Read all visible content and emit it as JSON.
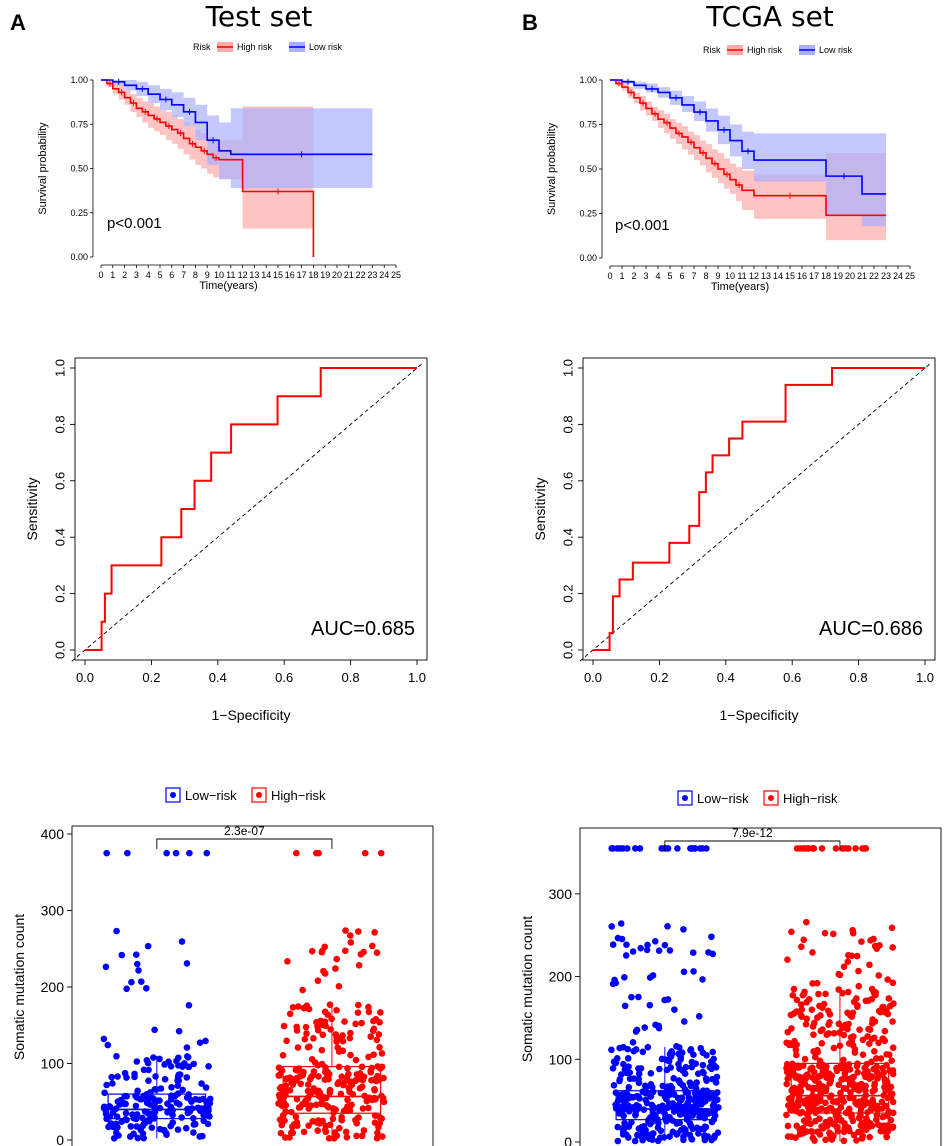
{
  "panels": [
    {
      "letter": "A",
      "title": "Test set"
    },
    {
      "letter": "B",
      "title": "TCGA set"
    }
  ],
  "colors": {
    "high": "#ff0000",
    "low": "#0000ff",
    "high_band": "#ffaaaa",
    "low_band": "#aab0ff",
    "overlap": "#a060b0"
  },
  "chart_data": [
    {
      "type": "line",
      "panel": "A",
      "title": "Test set",
      "xlabel": "Time(years)",
      "ylabel": "Survival probability",
      "xlim": [
        0,
        25
      ],
      "ylim": [
        0,
        1
      ],
      "x_ticks": [
        "0",
        "1",
        "2",
        "3",
        "4",
        "5",
        "6",
        "7",
        "8",
        "9",
        "10",
        "11",
        "12",
        "13",
        "14",
        "15",
        "16",
        "17",
        "18",
        "19",
        "20",
        "21",
        "22",
        "23",
        "24",
        "25"
      ],
      "y_ticks": [
        "0.00",
        "0.25",
        "0.50",
        "0.75",
        "1.00"
      ],
      "legend": {
        "title": "Risk",
        "entries": [
          "High risk",
          "Low risk"
        ],
        "placement": "top"
      },
      "annotation": "p<0.001",
      "series": [
        {
          "name": "High risk",
          "x": [
            0,
            0.5,
            1,
            1.5,
            2,
            2.5,
            3,
            3.5,
            4,
            4.5,
            5,
            5.5,
            6,
            6.5,
            7,
            7.5,
            8,
            8.5,
            9,
            9.5,
            10,
            12,
            18,
            18
          ],
          "y": [
            1,
            0.98,
            0.95,
            0.93,
            0.9,
            0.87,
            0.84,
            0.82,
            0.8,
            0.78,
            0.76,
            0.74,
            0.72,
            0.7,
            0.67,
            0.64,
            0.62,
            0.6,
            0.58,
            0.56,
            0.55,
            0.37,
            0.37,
            0
          ],
          "upper": [
            1,
            1,
            0.98,
            0.97,
            0.94,
            0.92,
            0.9,
            0.88,
            0.87,
            0.85,
            0.83,
            0.82,
            0.8,
            0.78,
            0.76,
            0.74,
            0.72,
            0.7,
            0.68,
            0.66,
            0.66,
            0.85,
            0.85,
            0.85
          ],
          "lower": [
            1,
            0.96,
            0.92,
            0.89,
            0.86,
            0.82,
            0.79,
            0.76,
            0.73,
            0.71,
            0.69,
            0.66,
            0.64,
            0.61,
            0.58,
            0.55,
            0.52,
            0.5,
            0.47,
            0.45,
            0.44,
            0.16,
            0.16,
            0
          ]
        },
        {
          "name": "Low risk",
          "x": [
            0,
            1,
            2,
            3,
            4,
            5,
            6,
            7,
            8,
            9,
            10,
            11,
            23
          ],
          "y": [
            1,
            0.99,
            0.97,
            0.95,
            0.92,
            0.89,
            0.86,
            0.82,
            0.76,
            0.66,
            0.6,
            0.58,
            0.58
          ],
          "upper": [
            1,
            1,
            1,
            0.99,
            0.97,
            0.95,
            0.93,
            0.9,
            0.86,
            0.8,
            0.76,
            0.84,
            0.84
          ],
          "lower": [
            1,
            0.97,
            0.94,
            0.91,
            0.87,
            0.83,
            0.79,
            0.74,
            0.66,
            0.52,
            0.44,
            0.39,
            0.39
          ]
        }
      ]
    },
    {
      "type": "line",
      "panel": "B",
      "title": "TCGA set",
      "xlabel": "Time(years)",
      "ylabel": "Survival probability",
      "xlim": [
        0,
        25
      ],
      "ylim": [
        0,
        1
      ],
      "x_ticks": [
        "0",
        "1",
        "2",
        "3",
        "4",
        "5",
        "6",
        "7",
        "8",
        "9",
        "10",
        "11",
        "12",
        "13",
        "14",
        "15",
        "16",
        "17",
        "18",
        "19",
        "20",
        "21",
        "22",
        "23",
        "24",
        "25"
      ],
      "y_ticks": [
        "0.00",
        "0.25",
        "0.50",
        "0.75",
        "1.00"
      ],
      "legend": {
        "title": "Risk",
        "entries": [
          "High risk",
          "Low risk"
        ],
        "placement": "top"
      },
      "annotation": "p<0.001",
      "series": [
        {
          "name": "High risk",
          "x": [
            0,
            0.5,
            1,
            1.5,
            2,
            2.5,
            3,
            3.5,
            4,
            4.5,
            5,
            5.5,
            6,
            6.5,
            7,
            7.5,
            8,
            8.5,
            9,
            9.5,
            10,
            10.5,
            11,
            12,
            18,
            23
          ],
          "y": [
            1,
            0.98,
            0.96,
            0.93,
            0.9,
            0.87,
            0.84,
            0.81,
            0.78,
            0.76,
            0.73,
            0.7,
            0.68,
            0.65,
            0.62,
            0.59,
            0.56,
            0.53,
            0.5,
            0.47,
            0.44,
            0.41,
            0.38,
            0.35,
            0.24,
            0.24
          ],
          "upper": [
            1,
            1,
            0.98,
            0.96,
            0.93,
            0.91,
            0.88,
            0.85,
            0.83,
            0.81,
            0.78,
            0.76,
            0.74,
            0.71,
            0.69,
            0.66,
            0.64,
            0.61,
            0.59,
            0.56,
            0.53,
            0.51,
            0.49,
            0.47,
            0.59,
            0.59
          ],
          "lower": [
            1,
            0.97,
            0.94,
            0.9,
            0.87,
            0.83,
            0.8,
            0.77,
            0.73,
            0.7,
            0.67,
            0.64,
            0.61,
            0.58,
            0.55,
            0.52,
            0.48,
            0.45,
            0.42,
            0.39,
            0.36,
            0.32,
            0.27,
            0.22,
            0.1,
            0.1
          ]
        },
        {
          "name": "Low risk",
          "x": [
            0,
            1,
            2,
            3,
            4,
            5,
            6,
            7,
            8,
            9,
            10,
            11,
            12,
            18,
            21,
            23
          ],
          "y": [
            1,
            0.99,
            0.97,
            0.95,
            0.93,
            0.9,
            0.86,
            0.82,
            0.77,
            0.72,
            0.66,
            0.6,
            0.55,
            0.46,
            0.36,
            0.36
          ],
          "upper": [
            1,
            1,
            0.99,
            0.98,
            0.96,
            0.94,
            0.91,
            0.88,
            0.84,
            0.8,
            0.75,
            0.71,
            0.7,
            0.7,
            0.7,
            0.7
          ],
          "lower": [
            1,
            0.98,
            0.95,
            0.93,
            0.9,
            0.86,
            0.82,
            0.77,
            0.71,
            0.64,
            0.57,
            0.5,
            0.43,
            0.24,
            0.18,
            0.18
          ]
        }
      ]
    },
    {
      "type": "line",
      "panel": "A",
      "xlabel": "1−Specificity",
      "ylabel": "Sensitivity",
      "xlim": [
        0,
        1
      ],
      "ylim": [
        0,
        1
      ],
      "x_ticks": [
        "0.0",
        "0.2",
        "0.4",
        "0.6",
        "0.8",
        "1.0"
      ],
      "y_ticks": [
        "0.0",
        "0.2",
        "0.4",
        "0.6",
        "0.8",
        "1.0"
      ],
      "annotation": "AUC=0.685",
      "series": [
        {
          "name": "ROC",
          "x": [
            0,
            0.05,
            0.05,
            0.06,
            0.06,
            0.08,
            0.08,
            0.23,
            0.23,
            0.29,
            0.29,
            0.33,
            0.33,
            0.38,
            0.38,
            0.44,
            0.44,
            0.58,
            0.58,
            0.71,
            0.71,
            1.0
          ],
          "y": [
            0,
            0,
            0.1,
            0.1,
            0.2,
            0.2,
            0.3,
            0.3,
            0.4,
            0.4,
            0.5,
            0.5,
            0.6,
            0.6,
            0.7,
            0.7,
            0.8,
            0.8,
            0.9,
            0.9,
            1.0,
            1.0
          ]
        }
      ]
    },
    {
      "type": "line",
      "panel": "B",
      "xlabel": "1−Specificity",
      "ylabel": "Sensitivity",
      "xlim": [
        0,
        1
      ],
      "ylim": [
        0,
        1
      ],
      "x_ticks": [
        "0.0",
        "0.2",
        "0.4",
        "0.6",
        "0.8",
        "1.0"
      ],
      "y_ticks": [
        "0.0",
        "0.2",
        "0.4",
        "0.6",
        "0.8",
        "1.0"
      ],
      "annotation": "AUC=0.686",
      "series": [
        {
          "name": "ROC",
          "x": [
            0,
            0.05,
            0.05,
            0.06,
            0.06,
            0.08,
            0.08,
            0.12,
            0.12,
            0.23,
            0.23,
            0.29,
            0.29,
            0.32,
            0.32,
            0.34,
            0.34,
            0.36,
            0.36,
            0.41,
            0.41,
            0.45,
            0.45,
            0.58,
            0.58,
            0.72,
            0.72,
            1.0
          ],
          "y": [
            0,
            0,
            0.06,
            0.06,
            0.19,
            0.19,
            0.25,
            0.25,
            0.31,
            0.31,
            0.38,
            0.38,
            0.44,
            0.44,
            0.56,
            0.56,
            0.63,
            0.63,
            0.69,
            0.69,
            0.75,
            0.75,
            0.81,
            0.81,
            0.94,
            0.94,
            1.0,
            1.0
          ]
        }
      ]
    },
    {
      "type": "scatter",
      "panel": "A",
      "xlabel": "",
      "ylabel": "Somatic mutation count",
      "categories": [
        "Low−risk",
        "High−risk"
      ],
      "ylim": [
        0,
        400
      ],
      "y_ticks": [
        "0",
        "100",
        "200",
        "300",
        "400"
      ],
      "legend": {
        "entries": [
          "Low−risk",
          "High−risk"
        ],
        "placement": "top"
      },
      "comparison_p": "2.3e-07",
      "boxes": [
        {
          "name": "Low−risk",
          "q1": 28,
          "median": 40,
          "q3": 60,
          "whisker_low": 2,
          "whisker_high": 110,
          "n_points": 220,
          "max": 375
        },
        {
          "name": "High−risk",
          "q1": 35,
          "median": 57,
          "q3": 96,
          "whisker_low": 2,
          "whisker_high": 180,
          "n_points": 300,
          "max": 375
        }
      ]
    },
    {
      "type": "scatter",
      "panel": "B",
      "xlabel": "",
      "ylabel": "Somatic mutation count",
      "categories": [
        "Low−risk",
        "High−risk"
      ],
      "ylim": [
        0,
        370
      ],
      "y_ticks": [
        "0",
        "100",
        "200",
        "300"
      ],
      "legend": {
        "entries": [
          "Low−risk",
          "High−risk"
        ],
        "placement": "top"
      },
      "comparison_p": "7.9e-12",
      "boxes": [
        {
          "name": "Low−risk",
          "q1": 27,
          "median": 40,
          "q3": 62,
          "whisker_low": 1,
          "whisker_high": 115,
          "n_points": 420,
          "max": 355
        },
        {
          "name": "High−risk",
          "q1": 35,
          "median": 56,
          "q3": 95,
          "whisker_low": 1,
          "whisker_high": 185,
          "n_points": 520,
          "max": 355
        }
      ]
    }
  ]
}
